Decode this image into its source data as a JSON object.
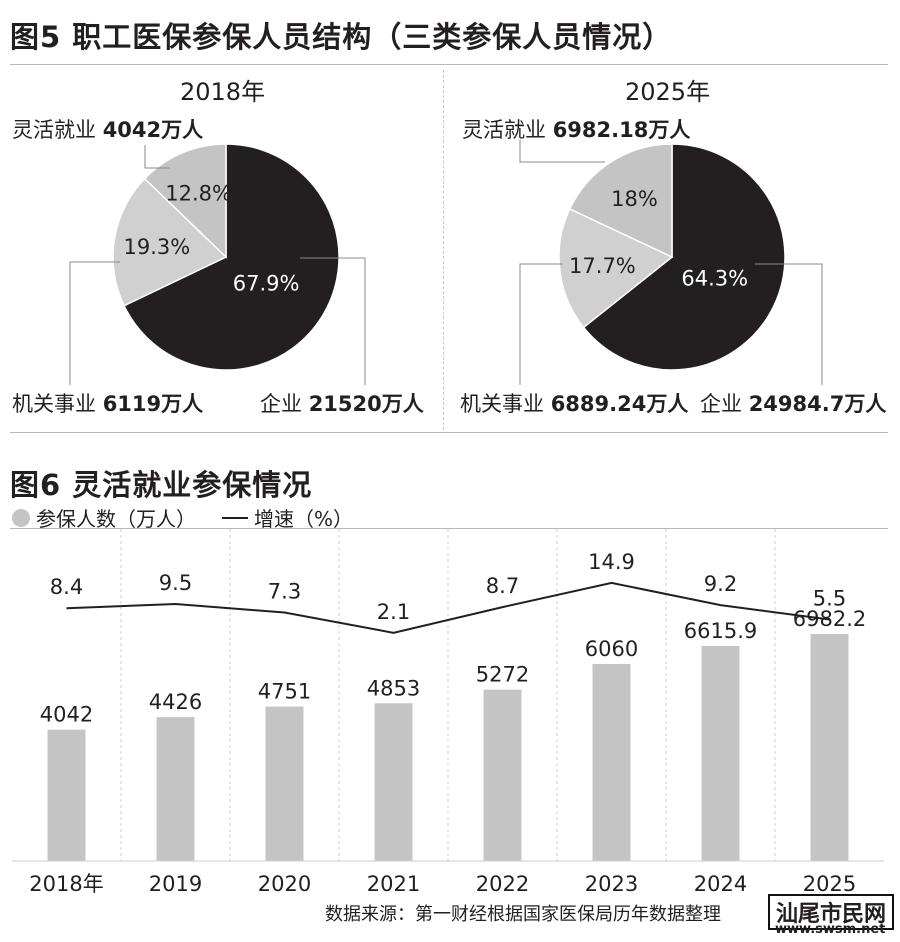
{
  "fig5": {
    "title": "图5 职工医保参保人员结构（三类参保人员情况）",
    "panels": [
      {
        "year": "2018年",
        "slices": [
          {
            "category": "企业",
            "amount_label": "21520万人",
            "percent": 67.9,
            "percent_label": "67.9%",
            "color": "#231f20",
            "text_color": "#ffffff"
          },
          {
            "category": "机关事业",
            "amount_label": "6119万人",
            "percent": 19.3,
            "percent_label": "19.3%",
            "color": "#d0d0d0",
            "text_color": "#231f20"
          },
          {
            "category": "灵活就业",
            "amount_label": "4042万人",
            "percent": 12.8,
            "percent_label": "12.8%",
            "color": "#c4c4c4",
            "text_color": "#231f20"
          }
        ]
      },
      {
        "year": "2025年",
        "slices": [
          {
            "category": "企业",
            "amount_label": "24984.7万人",
            "percent": 64.3,
            "percent_label": "64.3%",
            "color": "#231f20",
            "text_color": "#ffffff"
          },
          {
            "category": "机关事业",
            "amount_label": "6889.24万人",
            "percent": 17.7,
            "percent_label": "17.7%",
            "color": "#d0d0d0",
            "text_color": "#231f20"
          },
          {
            "category": "灵活就业",
            "amount_label": "6982.18万人",
            "percent": 18,
            "percent_label": "18%",
            "color": "#c4c4c4",
            "text_color": "#231f20"
          }
        ]
      }
    ]
  },
  "fig6": {
    "title": "图6 灵活就业参保情况",
    "legend": {
      "bar": "参保人数（万人）",
      "line": "增速（%）"
    },
    "source": "数据来源：第一财经根据国家医保局历年数据整理"
  },
  "watermark": {
    "logo_text": "汕尾市民网",
    "url": "www.swsm.net"
  },
  "chart_data": [
    {
      "type": "pie",
      "title": "2018年",
      "labels": [
        "企业",
        "机关事业",
        "灵活就业"
      ],
      "values": [
        67.9,
        19.3,
        12.8
      ],
      "amounts": [
        21520,
        6119,
        4042
      ],
      "unit": "万人"
    },
    {
      "type": "pie",
      "title": "2025年",
      "labels": [
        "企业",
        "机关事业",
        "灵活就业"
      ],
      "values": [
        64.3,
        17.7,
        18
      ],
      "amounts": [
        24984.7,
        6889.24,
        6982.18
      ],
      "unit": "万人"
    },
    {
      "type": "bar",
      "categories": [
        "2018年",
        "2019",
        "2020",
        "2021",
        "2022",
        "2023",
        "2024",
        "2025"
      ],
      "series": [
        {
          "name": "参保人数（万人）",
          "type": "bar",
          "values": [
            4042,
            4426,
            4751,
            4853,
            5272,
            6060,
            6615.9,
            6982.2
          ],
          "labels": [
            "4042",
            "4426",
            "4751",
            "4853",
            "5272",
            "6060",
            "6615.9",
            "6982.2"
          ],
          "color": "#c4c4c4"
        },
        {
          "name": "增速（%）",
          "type": "line",
          "values": [
            8.4,
            9.5,
            7.3,
            2.1,
            8.7,
            14.9,
            9.2,
            5.5
          ],
          "labels": [
            "8.4",
            "9.5",
            "7.3",
            "2.1",
            "8.7",
            "14.9",
            "9.2",
            "5.5"
          ],
          "color": "#231f20"
        }
      ],
      "grid": "vertical dashed"
    }
  ]
}
